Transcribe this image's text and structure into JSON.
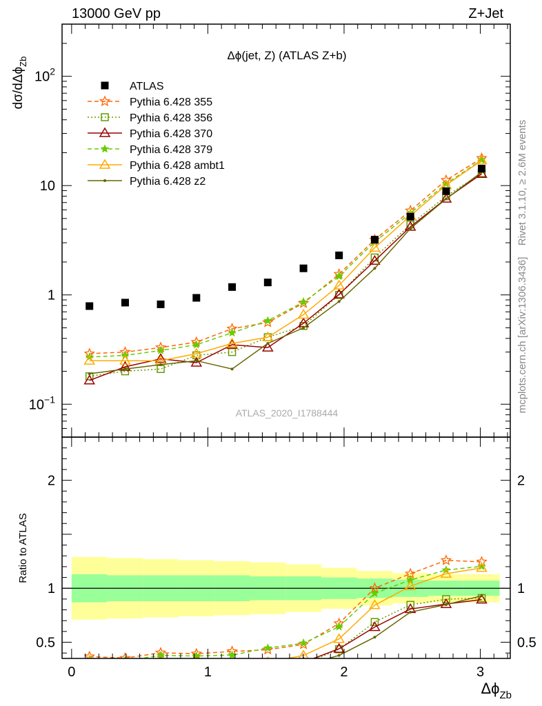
{
  "header": {
    "left": "13000 GeV pp",
    "right": "Z+Jet"
  },
  "side_labels": {
    "rivet": "Rivet 3.1.10, ≥ 2.6M events",
    "mcplots": "mcplots.cern.ch [arXiv:1306.3436]"
  },
  "chart_data": {
    "type": "scatter",
    "title": "Δϕ(jet, Z) (ATLAS Z+b)",
    "watermark": "ATLAS_2020_I1788444",
    "xlabel": "Δϕ",
    "xlabel_sub": "Zb",
    "ylabel": "dσ/dΔϕ",
    "ylabel_sub": "Zb",
    "ratio_ylabel": "Ratio to ATLAS",
    "xlim": [
      -0.07,
      3.22
    ],
    "ylim": [
      0.05,
      300
    ],
    "yscale": "log",
    "ratio_ylim": [
      0.35,
      2.4
    ],
    "xticks": [
      "0",
      "1",
      "2",
      "3"
    ],
    "yticks": [
      "10",
      "1"
    ],
    "yticks_pow": [
      {
        "base": "10",
        "exp": "2"
      },
      {
        "base": "10",
        "exp": "−1"
      }
    ],
    "ratio_yticks": [
      "2",
      "1",
      "0.5"
    ],
    "colors": {
      "atlas": "#000000",
      "band_inner": "#99ff99",
      "band_outer": "#ffff99",
      "s355": "#ff6600",
      "s356": "#669900",
      "s370": "#990000",
      "s379": "#66cc00",
      "ambt1": "#ffaa00",
      "z2": "#666600"
    },
    "x": [
      0.131,
      0.393,
      0.654,
      0.916,
      1.178,
      1.44,
      1.702,
      1.963,
      2.225,
      2.487,
      2.749,
      3.01
    ],
    "bin_edges": [
      0.0,
      0.262,
      0.524,
      0.785,
      1.047,
      1.309,
      1.571,
      1.833,
      2.094,
      2.356,
      2.618,
      2.88,
      3.142
    ],
    "atlas": {
      "name": "ATLAS",
      "values": [
        0.79,
        0.85,
        0.82,
        0.94,
        1.18,
        1.3,
        1.75,
        2.3,
        3.2,
        5.2,
        8.9,
        14.3
      ],
      "band_inner": [
        0.13,
        0.12,
        0.12,
        0.12,
        0.12,
        0.11,
        0.11,
        0.1,
        0.09,
        0.08,
        0.07,
        0.07
      ],
      "band_outer": [
        0.29,
        0.28,
        0.27,
        0.26,
        0.25,
        0.24,
        0.22,
        0.19,
        0.16,
        0.14,
        0.13,
        0.13
      ]
    },
    "series": [
      {
        "key": "s355",
        "name": "Pythia 6.428 355",
        "marker": "star",
        "dash": "6,4",
        "values": [
          0.29,
          0.3,
          0.33,
          0.37,
          0.49,
          0.56,
          0.84,
          1.55,
          3.2,
          5.9,
          11.2,
          17.8
        ]
      },
      {
        "key": "s356",
        "name": "Pythia 6.428 356",
        "marker": "square-open",
        "dash": "2,3",
        "values": [
          0.18,
          0.2,
          0.21,
          0.28,
          0.3,
          0.41,
          0.52,
          1.0,
          2.2,
          4.4,
          8.0,
          13.0
        ]
      },
      {
        "key": "s370",
        "name": "Pythia 6.428 370",
        "marker": "triangle-open",
        "dash": "",
        "values": [
          0.165,
          0.22,
          0.26,
          0.24,
          0.35,
          0.33,
          0.55,
          1.01,
          2.05,
          4.2,
          7.6,
          12.8
        ]
      },
      {
        "key": "s379",
        "name": "Pythia 6.428 379",
        "marker": "star-small",
        "dash": "6,4",
        "values": [
          0.27,
          0.28,
          0.31,
          0.35,
          0.45,
          0.58,
          0.86,
          1.48,
          3.05,
          5.6,
          10.4,
          17.2
        ]
      },
      {
        "key": "ambt1",
        "name": "Pythia 6.428 ambt1",
        "marker": "triangle-open",
        "dash": "",
        "values": [
          0.25,
          0.25,
          0.25,
          0.29,
          0.36,
          0.41,
          0.66,
          1.22,
          2.7,
          5.3,
          10.1,
          17.0
        ]
      },
      {
        "key": "z2",
        "name": "Pythia 6.428 z2",
        "marker": "dot",
        "dash": "",
        "values": [
          0.19,
          0.21,
          0.23,
          0.25,
          0.21,
          0.36,
          0.5,
          0.87,
          1.75,
          4.05,
          7.55,
          13.3
        ]
      }
    ]
  }
}
